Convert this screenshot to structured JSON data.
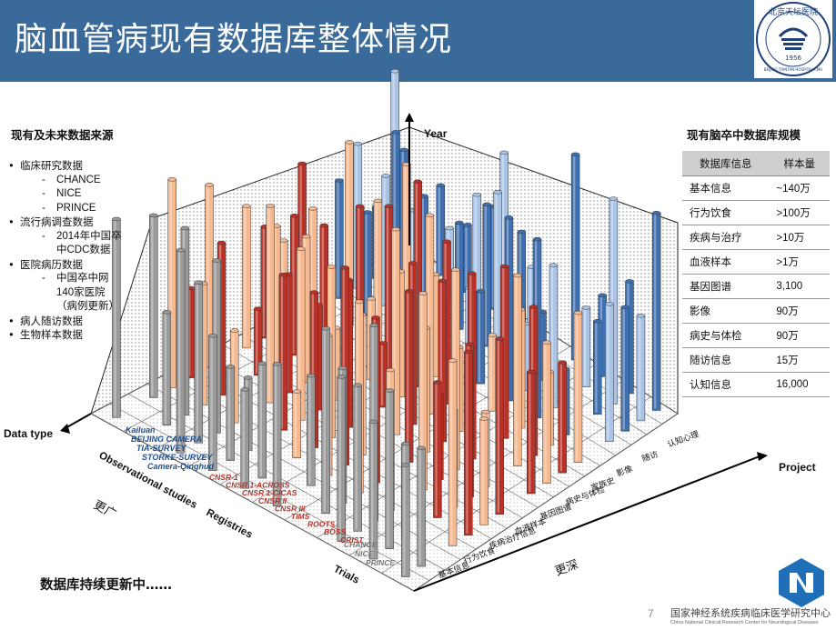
{
  "header": {
    "title": "脑血管病现有数据库整体情况",
    "background_color": "#3a6a9a",
    "logo_text_top": "北京天坛医院",
    "logo_text_bottom": "BEIJING TIANTAN HOSPITAL CMU",
    "logo_year": "1956"
  },
  "left_panel": {
    "heading": "现有及未来数据来源",
    "items": [
      {
        "label": "临床研究数据",
        "subs": [
          "CHANCE",
          "NICE",
          "PRINCE"
        ]
      },
      {
        "label": "流行病调查数据",
        "subs": [
          "2014年中国卒中CDC数据"
        ]
      },
      {
        "label": "医院病历数据",
        "subs": [
          "中国卒中网140家医院（病例更新）"
        ]
      },
      {
        "label": "病人随访数据",
        "subs": []
      },
      {
        "label": "生物样本数据",
        "subs": []
      }
    ]
  },
  "right_panel": {
    "heading": "现有脑卒中数据库规模",
    "col_headers": [
      "数据库信息",
      "样本量"
    ],
    "rows": [
      [
        "基本信息",
        "~140万"
      ],
      [
        "行为饮食",
        ">100万"
      ],
      [
        "疾病与治疗",
        ">10万"
      ],
      [
        "血液样本",
        ">1万"
      ],
      [
        "基因图谱",
        "3,100"
      ],
      [
        "影像",
        "90万"
      ],
      [
        "病史与体检",
        "90万"
      ],
      [
        "随访信息",
        "15万"
      ],
      [
        "认知信息",
        "16,000"
      ]
    ]
  },
  "chart": {
    "axis_year": "Year",
    "axis_datatype": "Data type",
    "axis_project": "Project",
    "breadth_label": "更广",
    "depth_label": "更深",
    "group_observational": "Observational studies",
    "group_registries": "Registries",
    "group_trials": "Trials",
    "observational_studies": [
      "Kailuan",
      "BEIJING CAMERA",
      "TIA-SURVEY",
      "STORKE-SURVEY",
      "Camera-Qinghud"
    ],
    "registries": [
      "CNSR-1",
      "CNSR 1-ACROSS",
      "CNSR 1-CICAS",
      "CNSR II",
      "CNSR III",
      "TIMS",
      "ROOTS",
      "BOSS",
      "CRIST"
    ],
    "trials": [
      "CHANCE",
      "NICE",
      "PRINCE"
    ],
    "projects": [
      "基本信息",
      "行为饮食",
      "疾病治疗信息",
      "血液样本",
      "基因图谱",
      "病史与体检",
      "家族史",
      "影像",
      "随访",
      "认知心理"
    ],
    "colors": {
      "blue": "#3f6fae",
      "light_blue": "#a9c4e6",
      "peach": "#f5b88f",
      "red": "#b83228",
      "gray": "#9a9a9a"
    }
  },
  "footer": {
    "status": "数据库持续更新中……",
    "page_number": "7",
    "org_cn": "国家神经系统疾病临床医学研究中心",
    "org_en": "China National Clinical Research Center for Neurological Diseases"
  }
}
